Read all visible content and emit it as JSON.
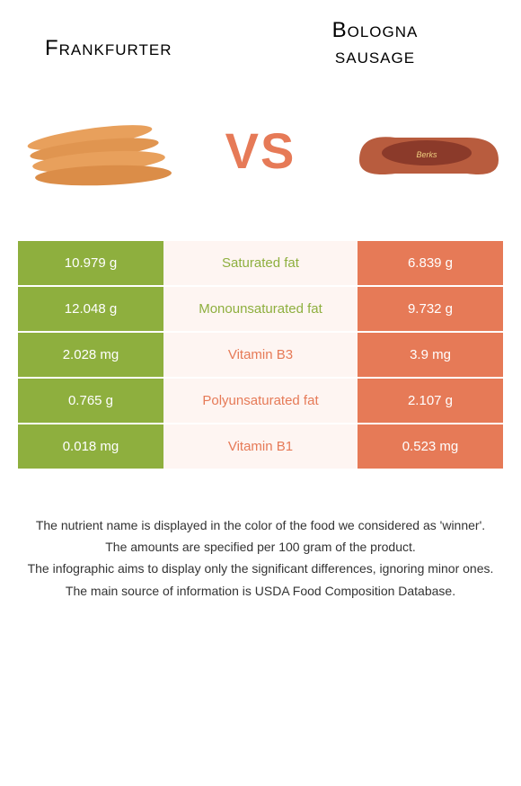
{
  "header": {
    "left_title": "Frankfurter",
    "right_title_line1": "Bologna",
    "right_title_line2": "sausage"
  },
  "vs_label": "VS",
  "colors": {
    "green": "#8eaf3e",
    "orange": "#e67a57",
    "middle_bg": "#fef5f2",
    "white": "#ffffff"
  },
  "comparison": {
    "rows": [
      {
        "left": "10.979 g",
        "middle": "Saturated fat",
        "winner": "green",
        "right": "6.839 g"
      },
      {
        "left": "12.048 g",
        "middle": "Monounsaturated fat",
        "winner": "green",
        "right": "9.732 g"
      },
      {
        "left": "2.028 mg",
        "middle": "Vitamin B3",
        "winner": "orange",
        "right": "3.9 mg"
      },
      {
        "left": "0.765 g",
        "middle": "Polyunsaturated fat",
        "winner": "orange",
        "right": "2.107 g"
      },
      {
        "left": "0.018 mg",
        "middle": "Vitamin B1",
        "winner": "orange",
        "right": "0.523 mg"
      }
    ]
  },
  "footer": {
    "line1": "The nutrient name is displayed in the color of the food we considered as 'winner'.",
    "line2": "The amounts are specified per 100 gram of the product.",
    "line3": "The infographic aims to display only the significant differences, ignoring minor ones.",
    "line4": "The main source of information is USDA Food Composition Database."
  }
}
